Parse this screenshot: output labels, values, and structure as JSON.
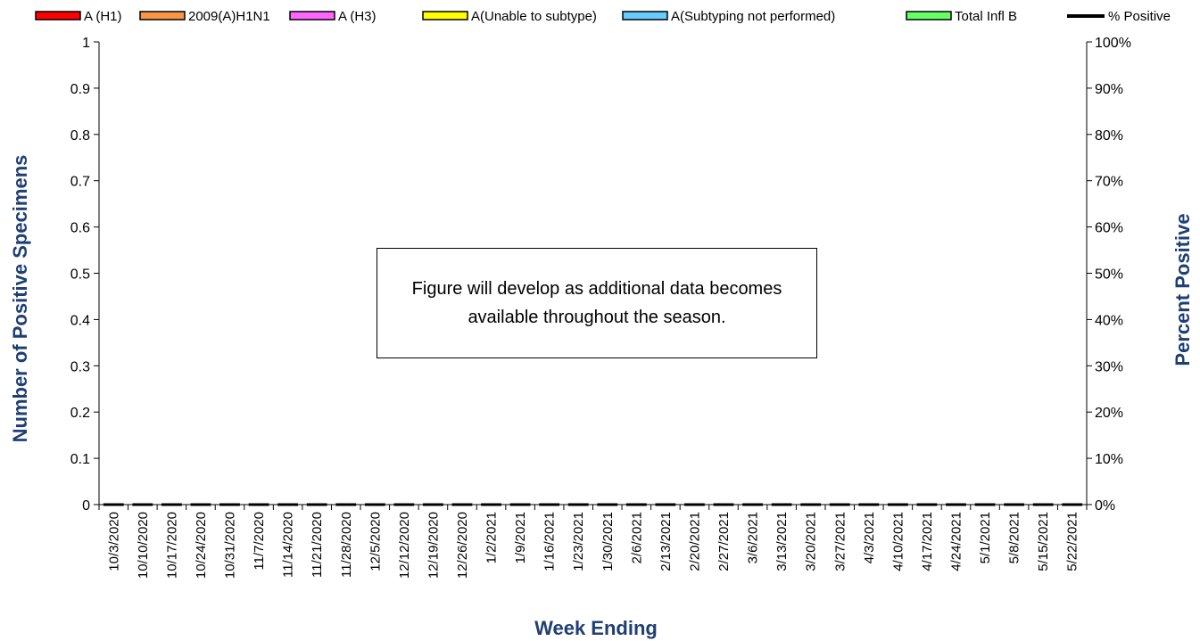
{
  "chart_data": {
    "type": "bar",
    "legend_position": "top",
    "legend": [
      {
        "label": "A (H1)",
        "color": "#ff0000",
        "kind": "bar"
      },
      {
        "label": "2009(A)H1N1",
        "color": "#f79646",
        "kind": "bar"
      },
      {
        "label": "A (H3)",
        "color": "#ff66ff",
        "kind": "bar"
      },
      {
        "label": "A(Unable to subtype)",
        "color": "#ffff00",
        "kind": "bar"
      },
      {
        "label": "A(Subtyping not performed)",
        "color": "#66ccff",
        "kind": "bar"
      },
      {
        "label": "Total Infl B",
        "color": "#66ff66",
        "kind": "bar"
      },
      {
        "label": "% Positive",
        "color": "#000000",
        "kind": "line"
      }
    ],
    "categories": [
      "10/3/2020",
      "10/10/2020",
      "10/17/2020",
      "10/24/2020",
      "10/31/2020",
      "11/7/2020",
      "11/14/2020",
      "11/21/2020",
      "11/28/2020",
      "12/5/2020",
      "12/12/2020",
      "12/19/2020",
      "12/26/2020",
      "1/2/2021",
      "1/9/2021",
      "1/16/2021",
      "1/23/2021",
      "1/30/2021",
      "2/6/2021",
      "2/13/2021",
      "2/20/2021",
      "2/27/2021",
      "3/6/2021",
      "3/13/2021",
      "3/20/2021",
      "3/27/2021",
      "4/3/2021",
      "4/10/2021",
      "4/17/2021",
      "4/24/2021",
      "5/1/2021",
      "5/8/2021",
      "5/15/2021",
      "5/22/2021"
    ],
    "series": [],
    "xlabel": "Week Ending",
    "ylabel": "Number of  Positive Specimens",
    "y2label": "Percent Positive",
    "ylim": [
      0,
      1
    ],
    "y_ticks": [
      "0",
      "0.1",
      "0.2",
      "0.3",
      "0.4",
      "0.5",
      "0.6",
      "0.7",
      "0.8",
      "0.9",
      "1"
    ],
    "y2lim": [
      0,
      100
    ],
    "y2_ticks": [
      "0%",
      "10%",
      "20%",
      "30%",
      "40%",
      "50%",
      "60%",
      "70%",
      "80%",
      "90%",
      "100%"
    ],
    "grid": false,
    "axis_title_color": "#1f3f73",
    "annotation": "Figure will develop as additional data becomes available throughout the season."
  }
}
